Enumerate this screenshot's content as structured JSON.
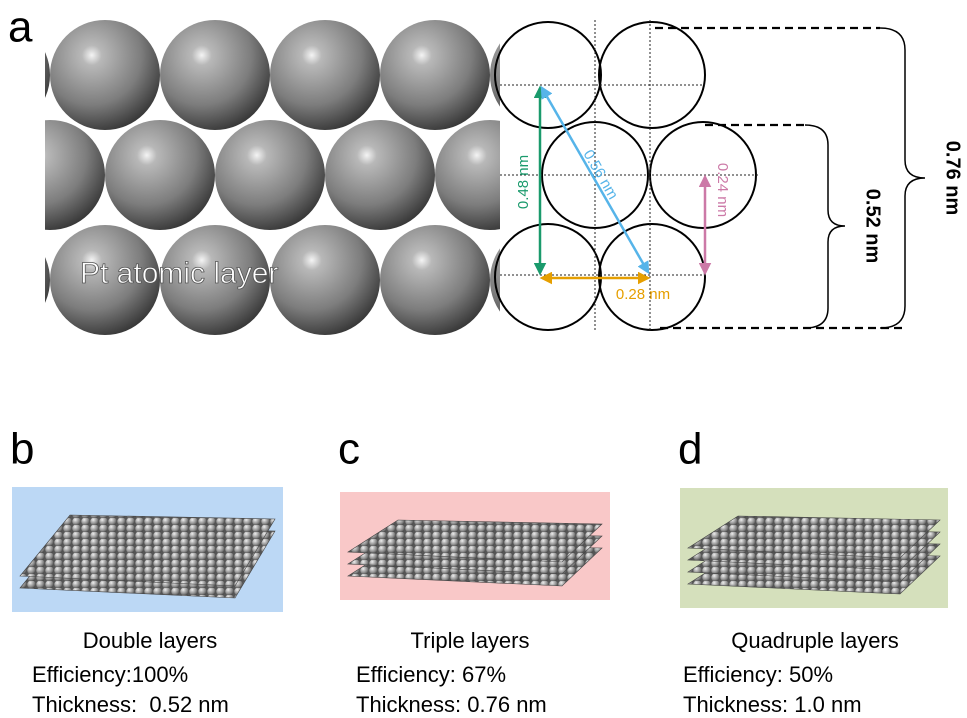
{
  "panel_a": {
    "label": "a",
    "layer_label": "Pt atomic layer",
    "dimensions": {
      "vertical": "0.48 nm",
      "diagonal": "0.56 nm",
      "half_vertical": "0.24 nm",
      "horizontal": "0.28 nm"
    },
    "brackets": {
      "small": "0.52 nm",
      "large": "0.76 nm"
    }
  },
  "panels": [
    {
      "label": "b",
      "title": "Double layers",
      "efficiency": "Efficiency:100%",
      "thickness": "Thickness:  0.52 nm"
    },
    {
      "label": "c",
      "title": "Triple layers",
      "efficiency": "Efficiency: 67%",
      "thickness": "Thickness: 0.76 nm"
    },
    {
      "label": "d",
      "title": "Quadruple layers",
      "efficiency": "Efficiency: 50%",
      "thickness": "Thickness: 1.0 nm"
    }
  ]
}
